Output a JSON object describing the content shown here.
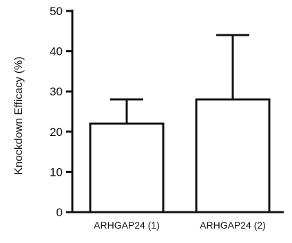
{
  "chart_data": {
    "type": "bar",
    "title": "",
    "xlabel": "",
    "ylabel": "Knockdown Efficacy (%)",
    "categories": [
      "ARHGAP24 (1)",
      "ARHGAP24 (2)"
    ],
    "values": [
      22,
      28
    ],
    "error_upper": [
      28,
      44
    ],
    "ylim": [
      0,
      50
    ],
    "yticks": [
      0,
      10,
      20,
      30,
      40,
      50
    ],
    "ytick_labels": [
      "0",
      "10",
      "20",
      "30",
      "40",
      "50"
    ],
    "grid": false,
    "legend": "none",
    "bar_fill": "#ffffff",
    "line_color": "#111111"
  }
}
